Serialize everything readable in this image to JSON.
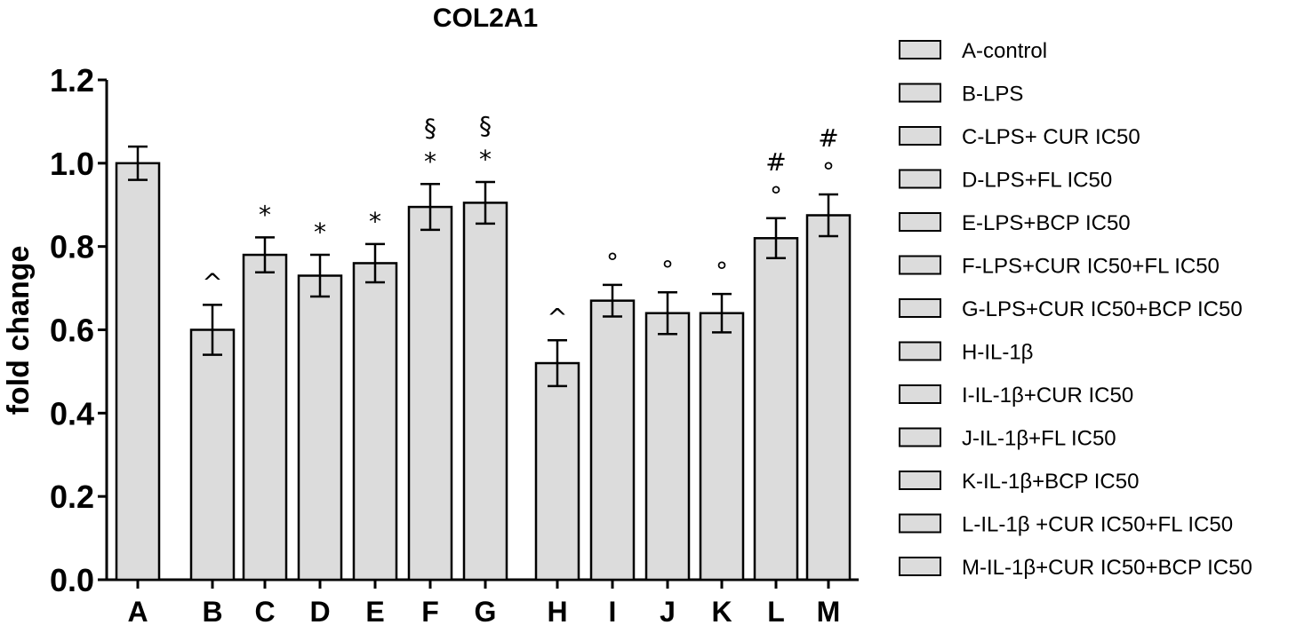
{
  "chart_data": {
    "type": "bar",
    "title": "COL2A1",
    "xlabel": "",
    "ylabel": "fold change",
    "ylim": [
      0,
      1.2
    ],
    "yticks": [
      "0.0",
      "0.2",
      "0.4",
      "0.6",
      "0.8",
      "1.0",
      "1.2"
    ],
    "fill_color": "#dcdcdc",
    "categories": [
      "A",
      "B",
      "C",
      "D",
      "E",
      "F",
      "G",
      "H",
      "I",
      "J",
      "K",
      "L",
      "M"
    ],
    "values": [
      1.0,
      0.6,
      0.78,
      0.73,
      0.76,
      0.895,
      0.905,
      0.52,
      0.67,
      0.64,
      0.64,
      0.82,
      0.875
    ],
    "errors": [
      0.04,
      0.06,
      0.042,
      0.05,
      0.046,
      0.055,
      0.05,
      0.055,
      0.038,
      0.05,
      0.046,
      0.048,
      0.05
    ],
    "annotations": [
      [],
      [
        "^"
      ],
      [
        "*"
      ],
      [
        "*"
      ],
      [
        "*"
      ],
      [
        "*",
        "§"
      ],
      [
        "*",
        "§"
      ],
      [
        "^"
      ],
      [
        "°"
      ],
      [
        "°"
      ],
      [
        "°"
      ],
      [
        "°",
        "#"
      ],
      [
        "°",
        "#"
      ]
    ],
    "legend_position": "right",
    "legend": [
      "A-control",
      "B-LPS",
      "C-LPS+ CUR IC50",
      "D-LPS+FL IC50",
      "E-LPS+BCP IC50",
      "F-LPS+CUR IC50+FL IC50",
      "G-LPS+CUR IC50+BCP IC50",
      "H-IL-1β",
      "I-IL-1β+CUR IC50",
      "J-IL-1β+FL IC50",
      "K-IL-1β+BCP IC50",
      "L-IL-1β +CUR IC50+FL IC50",
      "M-IL-1β+CUR IC50+BCP IC50"
    ]
  }
}
